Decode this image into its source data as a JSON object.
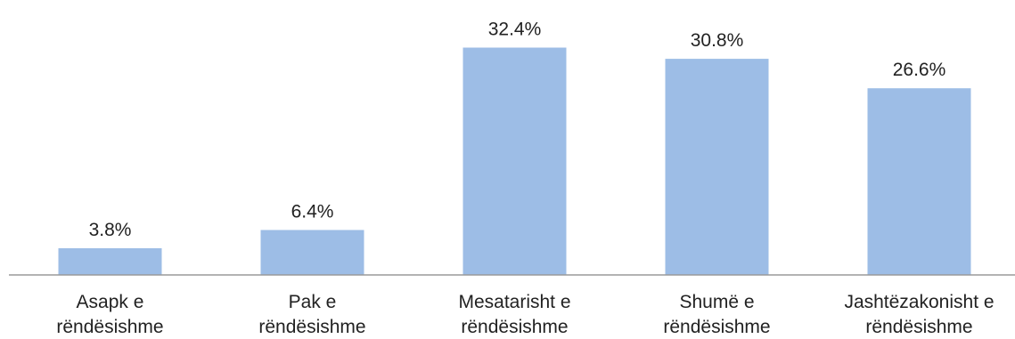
{
  "chart_data": {
    "type": "bar",
    "title": "",
    "xlabel": "",
    "ylabel": "",
    "ylim": [
      0,
      35
    ],
    "grid": false,
    "legend": "none",
    "bar_color": "#9dbde6",
    "axis_color": "#9a9a9a",
    "categories": [
      [
        "Asapk e",
        "rëndësishme"
      ],
      [
        "Pak e",
        "rëndësishme"
      ],
      [
        "Mesatarisht e",
        "rëndësishme"
      ],
      [
        "Shumë e",
        "rëndësishme"
      ],
      [
        "Jashtëzakonisht e",
        "rëndësishme"
      ]
    ],
    "values": [
      3.8,
      6.4,
      32.4,
      30.8,
      26.6
    ],
    "data_labels": [
      "3.8%",
      "6.4%",
      "32.4%",
      "30.8%",
      "26.6%"
    ]
  }
}
